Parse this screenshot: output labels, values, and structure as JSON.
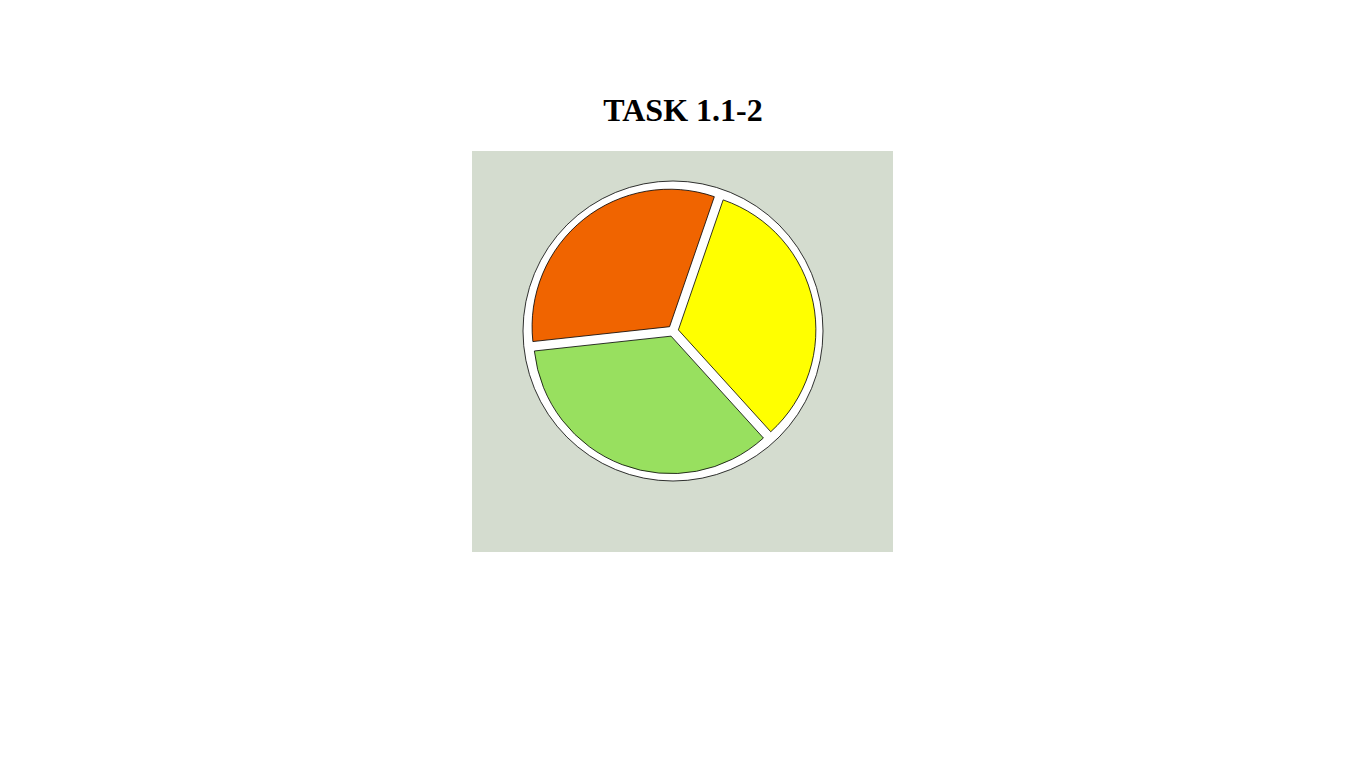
{
  "chart_data": {
    "type": "pie",
    "title": "TASK 1.1-2",
    "categories": [
      null,
      null,
      null
    ],
    "values": [
      33,
      32,
      35
    ],
    "colors": [
      "#ffff00",
      "#f06400",
      "#98e05f"
    ]
  }
}
